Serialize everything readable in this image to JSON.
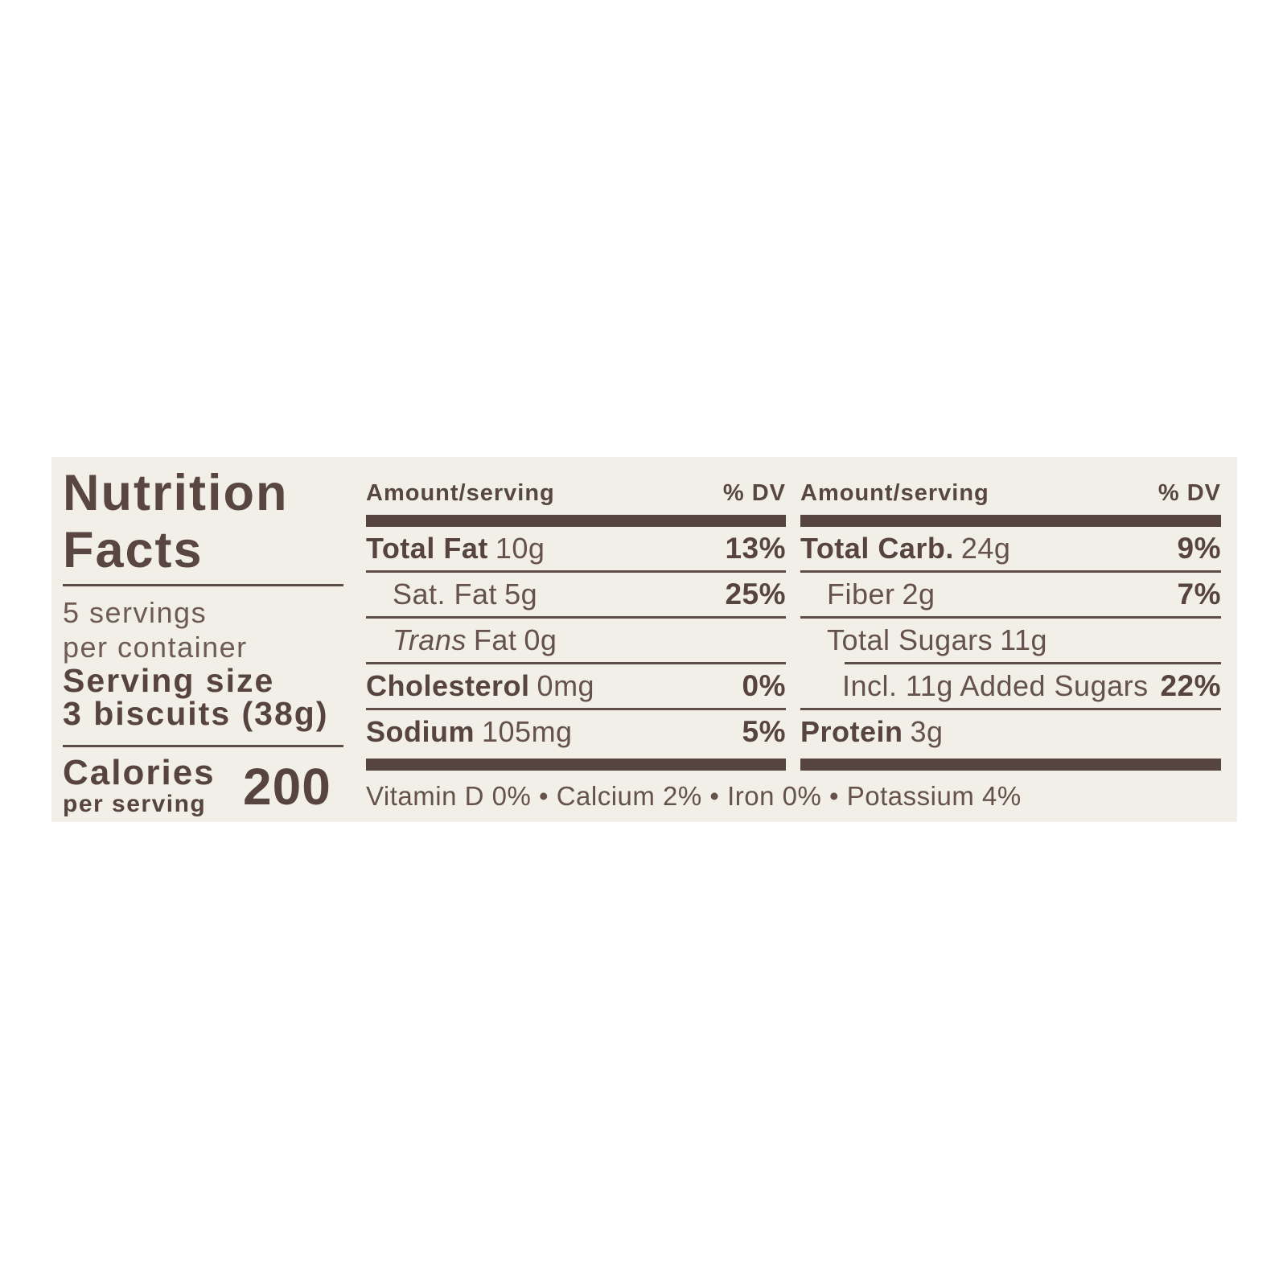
{
  "page": {
    "background": "#ffffff"
  },
  "label": {
    "colors": {
      "paper": "#f1efe8",
      "ink": "#574440",
      "ink_light": "#6d5b54",
      "rule": "#5d4b45"
    },
    "title_line1": "Nutrition",
    "title_line2": "Facts",
    "servings_line1": "5 servings",
    "servings_line2": "per container",
    "serving_size_label": "Serving size",
    "serving_size_value": "3 biscuits (38g)",
    "calories_label": "Calories",
    "calories_sublabel": "per serving",
    "calories_value": "200",
    "columns": [
      {
        "amount_header": "Amount/serving",
        "dv_header": "% DV",
        "rows": [
          {
            "name": "Total Fat",
            "amount": "10g",
            "dv": "13%"
          },
          {
            "name": "Sat. Fat",
            "amount": "5g",
            "dv": "25%"
          },
          {
            "name_italic": "Trans",
            "name": "Fat",
            "amount": "0g",
            "dv": ""
          },
          {
            "name": "Cholesterol",
            "amount": "0mg",
            "dv": "0%"
          },
          {
            "name": "Sodium",
            "amount": "105mg",
            "dv": "5%"
          }
        ]
      },
      {
        "amount_header": "Amount/serving",
        "dv_header": "% DV",
        "rows": [
          {
            "name": "Total Carb.",
            "amount": "24g",
            "dv": "9%"
          },
          {
            "name": "Fiber",
            "amount": "2g",
            "dv": "7%"
          },
          {
            "name": "Total Sugars",
            "amount": "11g",
            "dv": ""
          },
          {
            "name": "Incl. 11g Added Sugars",
            "amount": "",
            "dv": "22%"
          },
          {
            "name": "Protein",
            "amount": "3g",
            "dv": ""
          }
        ]
      }
    ],
    "micronutrients": "Vitamin D 0% • Calcium 2% • Iron 0% • Potassium 4%"
  }
}
